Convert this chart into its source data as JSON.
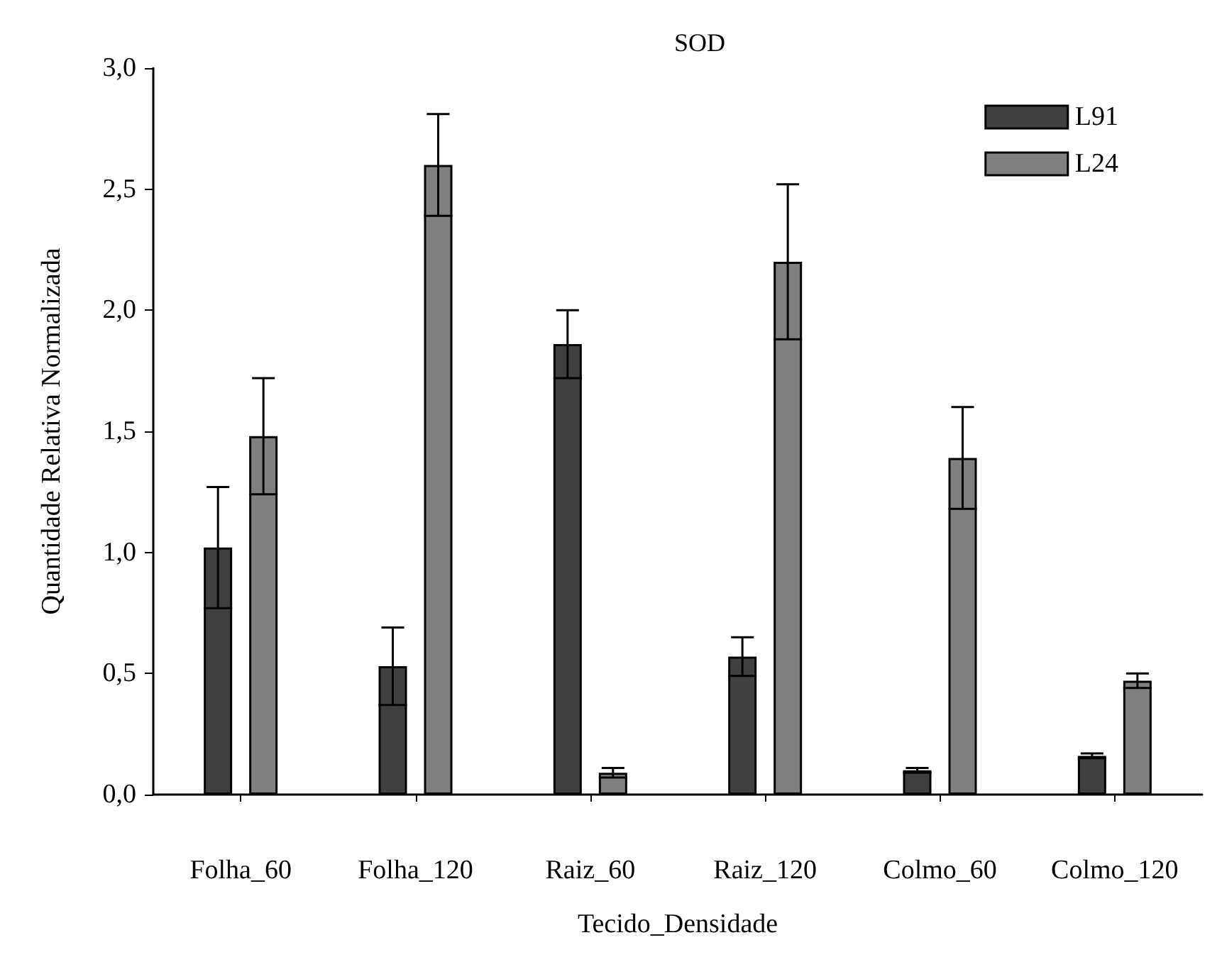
{
  "chart_data": {
    "type": "bar",
    "title": "SOD",
    "xlabel": "Tecido_Densidade",
    "ylabel": "Quantidade Relativa Normalizada",
    "categories": [
      "Folha_60",
      "Folha_120",
      "Raiz_60",
      "Raiz_120",
      "Colmo_60",
      "Colmo_120"
    ],
    "series": [
      {
        "name": "L91",
        "color": "#404040",
        "values": [
          1.02,
          0.53,
          1.86,
          0.57,
          0.1,
          0.16
        ],
        "errors": [
          0.25,
          0.16,
          0.14,
          0.08,
          0.01,
          0.01
        ]
      },
      {
        "name": "L24",
        "color": "#808080",
        "values": [
          1.48,
          2.6,
          0.09,
          2.2,
          1.39,
          0.47
        ],
        "errors": [
          0.24,
          0.21,
          0.02,
          0.32,
          0.21,
          0.03
        ]
      }
    ],
    "ylim": [
      0,
      3
    ],
    "yticks": [
      {
        "value": 0,
        "label": "0,0"
      },
      {
        "value": 0.5,
        "label": "0,5"
      },
      {
        "value": 1,
        "label": "1,0"
      },
      {
        "value": 1.5,
        "label": "1,5"
      },
      {
        "value": 2,
        "label": "2,0"
      },
      {
        "value": 2.5,
        "label": "2,5"
      },
      {
        "value": 3,
        "label": "3,0"
      }
    ],
    "grid": false,
    "legend": "top right"
  }
}
